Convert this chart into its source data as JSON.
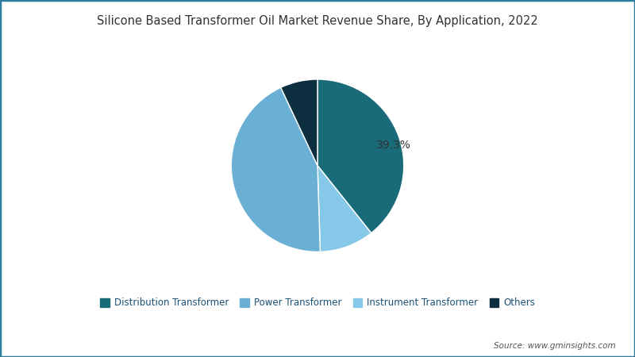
{
  "title": "Silicone Based Transformer Oil Market Revenue Share, By Application, 2022",
  "labels": [
    "Distribution Transformer",
    "Power Transformer",
    "Instrument Transformer",
    "Others"
  ],
  "colors": [
    "#1a6b7a",
    "#6ab0d4",
    "#85c8e8",
    "#0d2e3e"
  ],
  "label_39_3": "39.3%",
  "source_text": "Source: www.gminsights.com",
  "background_color": "#ffffff",
  "border_color": "#2e7d9e",
  "title_color": "#333333",
  "legend_color": "#1a5276",
  "figsize": [
    8.0,
    4.5
  ],
  "dpi": 100,
  "pie_order_sizes": [
    39.3,
    10.2,
    43.5,
    7.0
  ],
  "pie_order_indices": [
    0,
    2,
    1,
    3
  ],
  "startangle": 90
}
